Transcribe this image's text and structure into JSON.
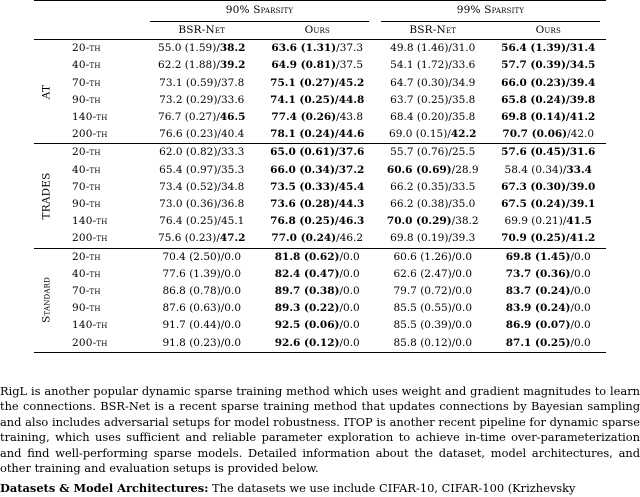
{
  "table": {
    "sparsity_headers": [
      "90% Sparsity",
      "99% Sparsity"
    ],
    "method_headers": [
      "BSR-Net",
      "Ours",
      "BSR-Net",
      "Ours"
    ],
    "groups": [
      {
        "label": "AT",
        "rows": [
          {
            "epoch": "20-th",
            "cells": [
              [
                "55.0 (1.59)/",
                "38.2"
              ],
              [
                "63.6 (1.31)",
                "/37.3"
              ],
              [
                "49.8 (1.46)/31.0",
                ""
              ],
              [
                "56.4 (1.39)/31.4",
                ""
              ]
            ]
          },
          {
            "epoch": "40-th",
            "cells": [
              [
                "62.2 (1.88)/",
                "39.2"
              ],
              [
                "64.9 (0.81)",
                "/37.5"
              ],
              [
                "54.1 (1.72)/33.6",
                ""
              ],
              [
                "57.7 (0.39)/34.5",
                ""
              ]
            ]
          },
          {
            "epoch": "70-th",
            "cells": [
              [
                "73.1 (0.59)/37.8",
                ""
              ],
              [
                "75.1 (0.27)/45.2",
                ""
              ],
              [
                "64.7 (0.30)/34.9",
                ""
              ],
              [
                "66.0 (0.23)/39.4",
                ""
              ]
            ]
          },
          {
            "epoch": "90-th",
            "cells": [
              [
                "73.2 (0.29)/33.6",
                ""
              ],
              [
                "74.1 (0.25)/44.8",
                ""
              ],
              [
                "63.7 (0.25)/35.8",
                ""
              ],
              [
                "65.8 (0.24)/39.8",
                ""
              ]
            ]
          },
          {
            "epoch": "140-th",
            "cells": [
              [
                "76.7 (0.27)/",
                "46.5"
              ],
              [
                "77.4 (0.26)",
                "/43.8"
              ],
              [
                "68.4 (0.20)/35.8",
                ""
              ],
              [
                "69.8 (0.14)/41.2",
                ""
              ]
            ]
          },
          {
            "epoch": "200-th",
            "cells": [
              [
                "76.6 (0.23)/40.4",
                ""
              ],
              [
                "78.1 (0.24)/44.6",
                ""
              ],
              [
                "69.0 (0.15)/",
                "42.2"
              ],
              [
                "70.7 (0.06)",
                "/42.0"
              ]
            ]
          }
        ]
      },
      {
        "label": "TRADES",
        "rows": [
          {
            "epoch": "20-th",
            "cells": [
              [
                "62.0 (0.82)/33.3",
                ""
              ],
              [
                "65.0 (0.61)/37.6",
                ""
              ],
              [
                "55.7 (0.76)/25.5",
                ""
              ],
              [
                "57.6 (0.45)/31.6",
                ""
              ]
            ]
          },
          {
            "epoch": "40-th",
            "cells": [
              [
                "65.4 (0.97)/35.3",
                ""
              ],
              [
                "66.0 (0.34)/37.2",
                ""
              ],
              [
                "60.6 (0.69)",
                "/28.9"
              ],
              [
                "58.4 (0.34)/",
                "33.4"
              ]
            ]
          },
          {
            "epoch": "70-th",
            "cells": [
              [
                "73.4 (0.52)/34.8",
                ""
              ],
              [
                "73.5 (0.33)/45.4",
                ""
              ],
              [
                "66.2 (0.35)/33.5",
                ""
              ],
              [
                "67.3 (0.30)/39.0",
                ""
              ]
            ]
          },
          {
            "epoch": "90-th",
            "cells": [
              [
                "73.0 (0.36)/36.8",
                ""
              ],
              [
                "73.6 (0.28)/44.3",
                ""
              ],
              [
                "66.2 (0.38)/35.0",
                ""
              ],
              [
                "67.5 (0.24)/39.1",
                ""
              ]
            ]
          },
          {
            "epoch": "140-th",
            "cells": [
              [
                "76.4 (0.25)/45.1",
                ""
              ],
              [
                "76.8 (0.25)/46.3",
                ""
              ],
              [
                "70.0 (0.29)",
                "/38.2"
              ],
              [
                "69.9 (0.21)/",
                "41.5"
              ]
            ]
          },
          {
            "epoch": "200-th",
            "cells": [
              [
                "75.6 (0.23)/",
                "47.2"
              ],
              [
                "77.0 (0.24)",
                "/46.2"
              ],
              [
                "69.8 (0.19)/39.3",
                ""
              ],
              [
                "70.9 (0.25)/41.2",
                ""
              ]
            ]
          }
        ]
      },
      {
        "label": "Standard",
        "rows": [
          {
            "epoch": "20-th",
            "cells": [
              [
                "70.4 (2.50)/0.0",
                ""
              ],
              [
                "81.8 (0.62)",
                "/0.0"
              ],
              [
                "60.6 (1.26)/0.0",
                ""
              ],
              [
                "69.8 (1.45)",
                "/0.0"
              ]
            ]
          },
          {
            "epoch": "40-th",
            "cells": [
              [
                "77.6 (1.39)/0.0",
                ""
              ],
              [
                "82.4 (0.47)",
                "/0.0"
              ],
              [
                "62.6 (2.47)/0.0",
                ""
              ],
              [
                "73.7 (0.36)",
                "/0.0"
              ]
            ]
          },
          {
            "epoch": "70-th",
            "cells": [
              [
                "86.8 (0.78)/0.0",
                ""
              ],
              [
                "89.7 (0.38)",
                "/0.0"
              ],
              [
                "79.7 (0.72)/0.0",
                ""
              ],
              [
                "83.7 (0.24)",
                "/0.0"
              ]
            ]
          },
          {
            "epoch": "90-th",
            "cells": [
              [
                "87.6 (0.63)/0.0",
                ""
              ],
              [
                "89.3 (0.22)",
                "/0.0"
              ],
              [
                "85.5 (0.55)/0.0",
                ""
              ],
              [
                "83.9 (0.24)",
                "/0.0"
              ]
            ]
          },
          {
            "epoch": "140-th",
            "cells": [
              [
                "91.7 (0.44)/0.0",
                ""
              ],
              [
                "92.5 (0.06)",
                "/0.0"
              ],
              [
                "85.5 (0.39)/0.0",
                ""
              ],
              [
                "86.9 (0.07)",
                "/0.0"
              ]
            ]
          },
          {
            "epoch": "200-th",
            "cells": [
              [
                "91.8 (0.23)/0.0",
                ""
              ],
              [
                "92.6 (0.12)",
                "/0.0"
              ],
              [
                "85.8 (0.12)/0.0",
                ""
              ],
              [
                "87.1 (0.25)",
                "/0.0"
              ]
            ]
          }
        ]
      }
    ]
  },
  "paragraph": "RigL is another popular dynamic sparse training method which uses weight and gradient magnitudes to learn the connections. BSR-Net is a recent sparse training method that updates connections by Bayesian sampling and also includes adversarial setups for model robustness. ITOP is another recent pipeline for dynamic sparse training, which uses sufficient and reliable parameter exploration to achieve in-time over-parameterization and find well-performing sparse models. Detailed information about the dataset, model architectures, and other training and evaluation setups is provided below.",
  "cut_line": {
    "bold": "Datasets & Model Architectures:",
    "rest": " The datasets we use include CIFAR-10, CIFAR-100 (Krizhevsky"
  }
}
